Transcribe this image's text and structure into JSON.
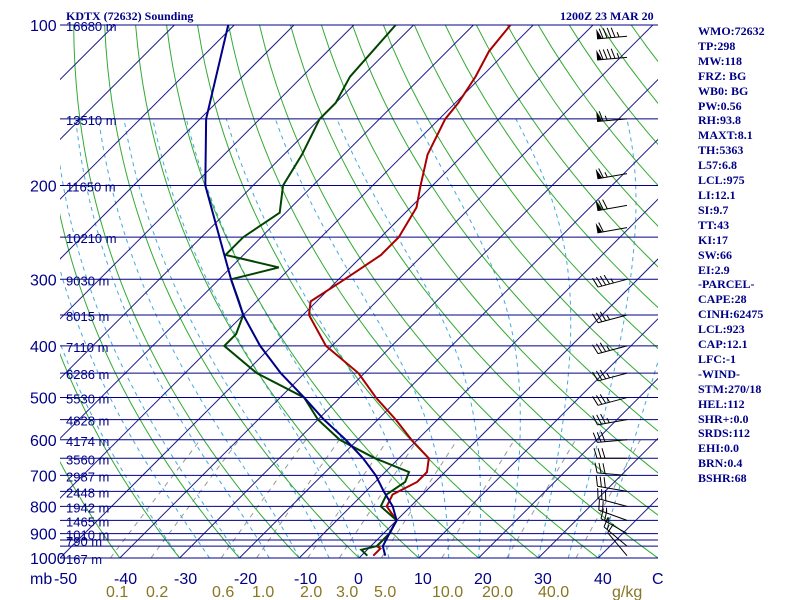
{
  "header": {
    "station": "KDTX (72632) Sounding",
    "time": "1200Z 23 MAR 20"
  },
  "stats": [
    "WMO:72632",
    "TP:298",
    "MW:118",
    "FRZ: BG",
    "WB0: BG",
    "PW:0.56",
    "RH:93.8",
    "MAXT:8.1",
    "TH:5363",
    "L57:6.8",
    "LCL:975",
    "LI:12.1",
    "SI:9.7",
    "TT:43",
    "KI:17",
    "SW:66",
    "EI:2.9",
    "-PARCEL-",
    "CAPE:28",
    "CINH:62475",
    "LCL:923",
    "CAP:12.1",
    "LFC:-1",
    "-WIND-",
    "STM:270/18",
    "HEL:112",
    "SHR+:0.0",
    "SRDS:112",
    "EHI:0.0",
    "BRN:0.4",
    "BSHR:68"
  ],
  "chart_data": {
    "type": "line",
    "subtype": "skew-t log-p sounding",
    "ylabel": "mb",
    "xlabel": "C",
    "mixing_ratio_unit": "g/kg",
    "xlim": [
      -50,
      50
    ],
    "ylim": [
      1000,
      100
    ],
    "pressure_ticks": [
      100,
      200,
      300,
      400,
      500,
      600,
      700,
      800,
      900,
      1000
    ],
    "temperature_ticks": [
      "-50",
      "-40",
      "-30",
      "-20",
      "-10",
      "0",
      "10",
      "20",
      "30",
      "40",
      "C"
    ],
    "mixing_ratio_ticks": [
      "0.1",
      "0.2",
      "0.6",
      "1.0",
      "2.0",
      "3.0",
      "5.0",
      "10.0",
      "20.0",
      "40.0",
      "g/kg"
    ],
    "height_labels": [
      {
        "p": 100,
        "label": "16680 m"
      },
      {
        "p": 150,
        "label": "13510 m"
      },
      {
        "p": 200,
        "label": "11650 m"
      },
      {
        "p": 250,
        "label": "10210 m"
      },
      {
        "p": 300,
        "label": "9030 m"
      },
      {
        "p": 350,
        "label": "8015 m"
      },
      {
        "p": 400,
        "label": "7110 m"
      },
      {
        "p": 450,
        "label": "6286 m"
      },
      {
        "p": 500,
        "label": "5530 m"
      },
      {
        "p": 550,
        "label": "4828 m"
      },
      {
        "p": 600,
        "label": "4174 m"
      },
      {
        "p": 650,
        "label": "3560 m"
      },
      {
        "p": 700,
        "label": "2987 m"
      },
      {
        "p": 750,
        "label": "2448 m"
      },
      {
        "p": 800,
        "label": "1942 m"
      },
      {
        "p": 850,
        "label": "1465 m"
      },
      {
        "p": 900,
        "label": "1010 m"
      },
      {
        "p": 925,
        "label": "790 m"
      },
      {
        "p": 1000,
        "label": "167 m"
      }
    ],
    "series": [
      {
        "color": "#aa0000",
        "points": [
          [
            100,
            -63.8
          ],
          [
            112,
            -63
          ],
          [
            125,
            -61
          ],
          [
            140,
            -59.5
          ],
          [
            150,
            -59
          ],
          [
            175,
            -56
          ],
          [
            200,
            -52
          ],
          [
            220,
            -49
          ],
          [
            250,
            -47
          ],
          [
            270,
            -47
          ],
          [
            300,
            -49
          ],
          [
            330,
            -51
          ],
          [
            350,
            -49
          ],
          [
            400,
            -41
          ],
          [
            450,
            -31
          ],
          [
            500,
            -24
          ],
          [
            550,
            -17
          ],
          [
            600,
            -11
          ],
          [
            650,
            -5
          ],
          [
            690,
            -3
          ],
          [
            720,
            -3
          ],
          [
            760,
            -5
          ],
          [
            800,
            -4
          ],
          [
            850,
            0
          ],
          [
            900,
            1
          ],
          [
            950,
            1
          ],
          [
            960,
            2
          ],
          [
            990,
            2
          ]
        ]
      },
      {
        "color": "#004400",
        "points": [
          [
            100,
            -83
          ],
          [
            125,
            -82
          ],
          [
            140,
            -80
          ],
          [
            150,
            -80
          ],
          [
            175,
            -77
          ],
          [
            200,
            -75
          ],
          [
            225,
            -71
          ],
          [
            250,
            -73
          ],
          [
            270,
            -73
          ],
          [
            285,
            -62
          ],
          [
            300,
            -68
          ],
          [
            330,
            -63
          ],
          [
            350,
            -60
          ],
          [
            380,
            -58
          ],
          [
            400,
            -58
          ],
          [
            450,
            -48
          ],
          [
            500,
            -36
          ],
          [
            550,
            -30
          ],
          [
            600,
            -23
          ],
          [
            650,
            -14
          ],
          [
            690,
            -6
          ],
          [
            720,
            -5
          ],
          [
            760,
            -6
          ],
          [
            800,
            -5
          ],
          [
            850,
            0
          ],
          [
            900,
            1
          ],
          [
            950,
            1
          ],
          [
            965,
            -1
          ],
          [
            990,
            1
          ]
        ]
      },
      {
        "color": "#000088",
        "points": [
          [
            100,
            -111
          ],
          [
            150,
            -99
          ],
          [
            200,
            -88
          ],
          [
            250,
            -77
          ],
          [
            300,
            -68
          ],
          [
            350,
            -60
          ],
          [
            400,
            -52
          ],
          [
            450,
            -44
          ],
          [
            500,
            -36
          ],
          [
            550,
            -29
          ],
          [
            600,
            -22
          ],
          [
            650,
            -16
          ],
          [
            700,
            -11
          ],
          [
            750,
            -7
          ],
          [
            800,
            -3
          ],
          [
            850,
            0
          ],
          [
            900,
            1
          ],
          [
            950,
            2
          ],
          [
            990,
            4
          ]
        ]
      }
    ],
    "wind_barbs": [
      {
        "p": 105,
        "dir": 265,
        "kt": 95
      },
      {
        "p": 115,
        "dir": 265,
        "kt": 95
      },
      {
        "p": 150,
        "dir": 265,
        "kt": 65
      },
      {
        "p": 190,
        "dir": 260,
        "kt": 65
      },
      {
        "p": 218,
        "dir": 260,
        "kt": 70
      },
      {
        "p": 240,
        "dir": 260,
        "kt": 60
      },
      {
        "p": 300,
        "dir": 255,
        "kt": 45
      },
      {
        "p": 350,
        "dir": 255,
        "kt": 35
      },
      {
        "p": 400,
        "dir": 255,
        "kt": 35
      },
      {
        "p": 450,
        "dir": 255,
        "kt": 35
      },
      {
        "p": 500,
        "dir": 255,
        "kt": 35
      },
      {
        "p": 550,
        "dir": 260,
        "kt": 35
      },
      {
        "p": 600,
        "dir": 265,
        "kt": 30
      },
      {
        "p": 650,
        "dir": 270,
        "kt": 30
      },
      {
        "p": 700,
        "dir": 275,
        "kt": 30
      },
      {
        "p": 750,
        "dir": 280,
        "kt": 30
      },
      {
        "p": 800,
        "dir": 285,
        "kt": 30
      },
      {
        "p": 850,
        "dir": 290,
        "kt": 25
      },
      {
        "p": 900,
        "dir": 300,
        "kt": 25
      },
      {
        "p": 950,
        "dir": 310,
        "kt": 15
      },
      {
        "p": 990,
        "dir": 320,
        "kt": 10
      }
    ]
  }
}
